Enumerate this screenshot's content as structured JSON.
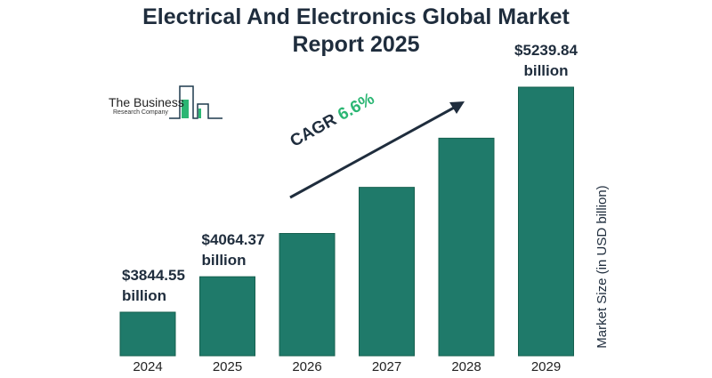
{
  "chart_data": {
    "type": "bar",
    "title": "Electrical And Electronics Global Market Report 2025",
    "categories": [
      "2024",
      "2025",
      "2026",
      "2027",
      "2028",
      "2029"
    ],
    "values": [
      3844.55,
      4064.37,
      4332.6,
      4618.6,
      4923.4,
      5239.84
    ],
    "data_labels": [
      "$3844.55 billion",
      "$4064.37 billion",
      "",
      "",
      "",
      "$5239.84 billion"
    ],
    "ylabel": "Market Size (in USD billion)",
    "xlabel": "",
    "grid": false,
    "bar_color": "#1f7a6a",
    "annotation": {
      "prefix": "CAGR",
      "value": "6.6%",
      "value_color": "#2bb673"
    }
  },
  "logo": {
    "line1": "The Business",
    "line2": "Research Company"
  }
}
